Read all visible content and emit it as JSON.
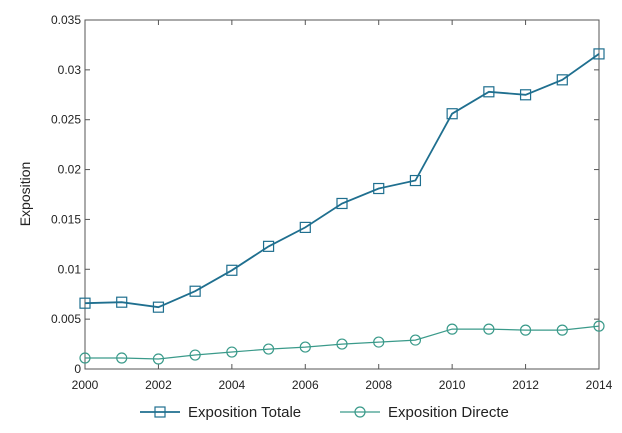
{
  "chart_data": {
    "type": "line",
    "title": "",
    "xlabel": "",
    "ylabel": "Exposition",
    "x": [
      2000,
      2001,
      2002,
      2003,
      2004,
      2005,
      2006,
      2007,
      2008,
      2009,
      2010,
      2011,
      2012,
      2013,
      2014
    ],
    "xlim": [
      2000,
      2014
    ],
    "ylim": [
      0,
      0.035
    ],
    "xticks": [
      "2000",
      "2002",
      "2004",
      "2006",
      "2008",
      "2010",
      "2012",
      "2014"
    ],
    "yticks": [
      "0",
      "0.005",
      "0.01",
      "0.015",
      "0.02",
      "0.025",
      "0.03",
      "0.035"
    ],
    "grid": false,
    "legend_position": "bottom",
    "series": [
      {
        "name": "Exposition Totale",
        "marker": "square",
        "color": "#1f6f8f",
        "values": [
          0.0066,
          0.0067,
          0.0062,
          0.0078,
          0.0099,
          0.0123,
          0.0142,
          0.0166,
          0.0181,
          0.0189,
          0.0256,
          0.0278,
          0.0275,
          0.029,
          0.0316
        ]
      },
      {
        "name": "Exposition Directe",
        "marker": "circle",
        "color": "#3a9a8a",
        "values": [
          0.0011,
          0.0011,
          0.001,
          0.0014,
          0.0017,
          0.002,
          0.0022,
          0.0025,
          0.0027,
          0.0029,
          0.004,
          0.004,
          0.0039,
          0.0039,
          0.0043
        ]
      }
    ]
  }
}
